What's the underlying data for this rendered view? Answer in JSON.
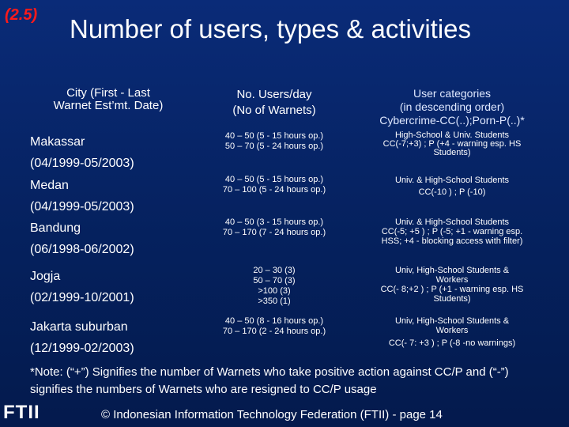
{
  "slide_number": "(2.5)",
  "title": "Number of users, types & activities",
  "table": {
    "headers": {
      "city": [
        "City (First - Last",
        "Warnet Est’mt. Date)"
      ],
      "users": [
        "No. Users/day",
        "(No of Warnets)"
      ],
      "categories": [
        "User categories",
        "(in descending order)",
        "Cybercrime-CC(..);Porn-P(..)*"
      ]
    },
    "rows": [
      {
        "city": [
          "Makassar",
          "(04/1999-05/2003)"
        ],
        "users": [
          "40 – 50 (5 - 15 hours op.)",
          "50 – 70 (5 - 24 hours op.)"
        ],
        "categories": [
          "High-School & Univ. Students",
          "CC(-7;+3) ; P (+4 - warning esp. HS",
          "Students)"
        ]
      },
      {
        "city": [
          "Medan",
          "(04/1999-05/2003)"
        ],
        "users": [
          "40 – 50 (5 - 15 hours op.)",
          "70 – 100 (5 - 24 hours op.)"
        ],
        "categories": [
          "Univ. & High-School Students",
          "CC(-10 ) ; P (-10)"
        ]
      },
      {
        "city": [
          "Bandung",
          "(06/1998-06/2002)"
        ],
        "users": [
          "40 – 50 (3 - 15 hours op.)",
          "70 – 170 (7 - 24 hours op.)"
        ],
        "categories": [
          "Univ. & High-School Students",
          "CC(-5; +5 ) ; P (-5; +1 - warning esp.",
          "HSS; +4 - blocking access with filter)"
        ]
      },
      {
        "city": [
          "Jogja",
          "(02/1999-10/2001)"
        ],
        "users": [
          "20 – 30 (3)",
          "50 – 70 (3)",
          ">100 (3)",
          ">350 (1)"
        ],
        "categories": [
          "Univ, High-School Students &",
          "Workers",
          "CC(- 8;+2 ) ; P (+1 - warning esp. HS",
          "Students)"
        ]
      },
      {
        "city": [
          "Jakarta suburban",
          "(12/1999-02/2003)"
        ],
        "users": [
          "40 – 50 (8 - 16 hours op.)",
          "70 – 170 (2 - 24 hours op.)"
        ],
        "categories": [
          "Univ, High-School Students &",
          "Workers",
          "CC(- 7: +3 ) ; P (-8 -no warnings)"
        ]
      }
    ]
  },
  "note": "*Note: (“+”) Signifies the number of Warnets who take positive action against CC/P and (“-”) signifies the numbers of Warnets who are resigned to CC/P usage",
  "logo_text": "FTII",
  "footer": "© Indonesian Information Technology Federation (FTII) - page 14"
}
